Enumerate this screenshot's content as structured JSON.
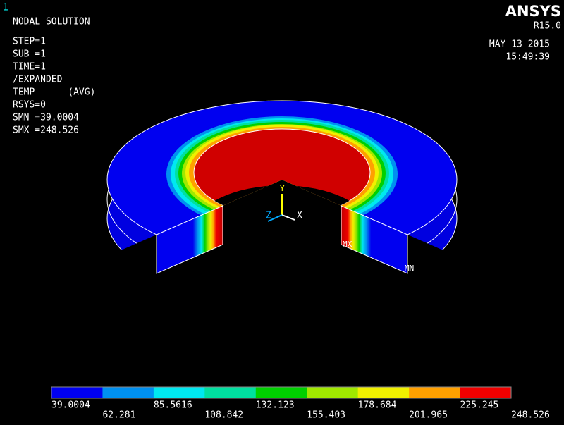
{
  "window_number": "1",
  "logo": "ANSYS",
  "version": "R15.0",
  "date": "MAY 13 2015",
  "time": "15:49:39",
  "info_lines": [
    "NODAL SOLUTION",
    "STEP=1",
    "SUB =1",
    "TIME=1",
    "/EXPANDED",
    "TEMP      (AVG)",
    "RSYS=0",
    "SMN =39.0004",
    "SMX =248.526"
  ],
  "model_labels": {
    "max": "MX",
    "min": "MN"
  },
  "triad": {
    "x": "X",
    "y": "Y",
    "z": "Z"
  },
  "legend": {
    "colors": [
      "#0000f0",
      "#0090f0",
      "#00e8f0",
      "#00e0a0",
      "#00d000",
      "#a0e800",
      "#f0f000",
      "#ffa000",
      "#f00000"
    ],
    "labels": [
      "39.0004",
      "62.281",
      "85.5616",
      "108.842",
      "132.123",
      "155.403",
      "178.684",
      "201.965",
      "225.245",
      "248.526"
    ]
  }
}
